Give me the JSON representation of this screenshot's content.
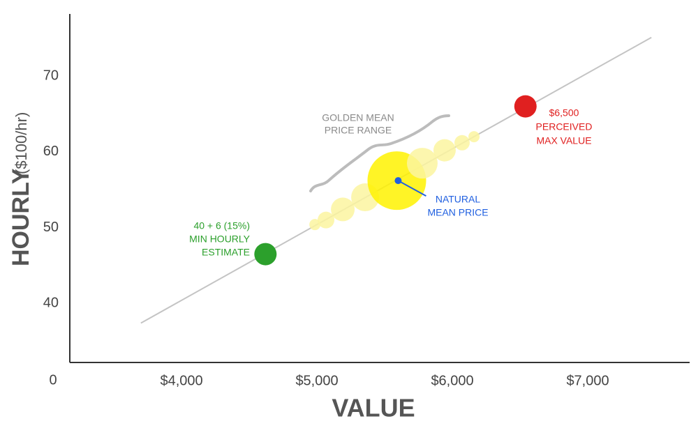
{
  "chart_data": {
    "type": "scatter",
    "x_label": "VALUE",
    "y_label": "HOURLY",
    "y_label_unit": "($100/hr)",
    "origin_label": "0",
    "xlim": [
      3175,
      7737
    ],
    "ylim": [
      32.2,
      78.2
    ],
    "xticks": [
      {
        "value": 4000,
        "label": "$4,000"
      },
      {
        "value": 5000,
        "label": "$5,000"
      },
      {
        "value": 6000,
        "label": "$6,000"
      },
      {
        "value": 7000,
        "label": "$7,000"
      }
    ],
    "yticks": [
      40,
      50,
      60,
      70
    ],
    "trend_line": {
      "x": [
        3700,
        7470
      ],
      "y": [
        37.4,
        75.1
      ],
      "color": "#c4c4c4"
    },
    "bubbles": {
      "x": [
        4985,
        5067,
        5191,
        5356,
        5590,
        5778,
        5943,
        6072,
        6160
      ],
      "y": [
        50.4,
        51.0,
        52.4,
        54.0,
        56.2,
        58.5,
        60.2,
        61.2,
        62.0
      ],
      "sizes": [
        8,
        12,
        17,
        20,
        42,
        22,
        16,
        11,
        8
      ],
      "colors": [
        "#fbf5a0",
        "#fbf5a0",
        "#fbf5a0",
        "#fbf5a0",
        "#fff200",
        "#fbf5a0",
        "#fbf5a0",
        "#fbf5a0",
        "#fbf5a0"
      ]
    },
    "range_annotation": {
      "lines": [
        "GOLDEN MEAN",
        "PRICE RANGE"
      ],
      "color": "#8a8a8a"
    },
    "points": [
      {
        "x": 4620,
        "y": 46.5,
        "color": "#2ca02c",
        "lines": [
          "40 + 6 (15%)",
          "MIN HOURLY",
          "ESTIMATE"
        ]
      },
      {
        "x": 6540,
        "y": 66.0,
        "color": "#e02020",
        "lines": [
          "$6,500",
          "PERCEIVED",
          "MAX VALUE"
        ]
      },
      {
        "x": 5600,
        "y": 56.2,
        "color": "#1f5fe0",
        "lines": [
          "NATURAL",
          "MEAN PRICE"
        ]
      }
    ]
  }
}
